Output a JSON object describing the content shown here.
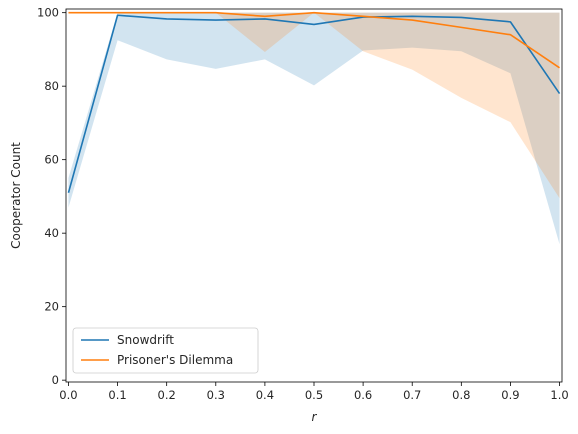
{
  "chart_data": {
    "type": "line",
    "title": "",
    "xlabel": "r",
    "ylabel": "Cooperator Count",
    "xlim": [
      -0.005,
      1.005
    ],
    "ylim": [
      -0.5,
      101
    ],
    "xticks": [
      0.0,
      0.1,
      0.2,
      0.3,
      0.4,
      0.5,
      0.6,
      0.7,
      0.8,
      0.9,
      1.0
    ],
    "xtick_labels": [
      "0.0",
      "0.1",
      "0.2",
      "0.3",
      "0.4",
      "0.5",
      "0.6",
      "0.7",
      "0.8",
      "0.9",
      "1.0"
    ],
    "yticks": [
      0,
      20,
      40,
      60,
      80,
      100
    ],
    "ytick_labels": [
      "0",
      "20",
      "40",
      "60",
      "80",
      "100"
    ],
    "grid": false,
    "legend": "lower-left",
    "x": [
      0.0,
      0.1,
      0.2,
      0.3,
      0.4,
      0.5,
      0.6,
      0.7,
      0.8,
      0.9,
      1.0
    ],
    "series": [
      {
        "name": "Snowdrift",
        "color": "#1f77b4",
        "values": [
          51,
          99.3,
          98.3,
          98,
          98.3,
          96.8,
          98.8,
          99,
          98.7,
          97.5,
          78
        ],
        "band_low": [
          47,
          92.5,
          87.3,
          84.7,
          87.3,
          80.2,
          89.7,
          90.5,
          89.5,
          83.5,
          37
        ],
        "band_high": [
          55,
          100,
          100,
          100,
          100,
          100,
          100,
          100,
          100,
          100,
          100
        ]
      },
      {
        "name": "Prisoner's Dilemma",
        "color": "#ff7f0e",
        "values": [
          100,
          100,
          100,
          100,
          99,
          100,
          99,
          98,
          96,
          94,
          85
        ],
        "band_low": [
          100,
          100,
          100,
          100,
          89.3,
          100,
          89.5,
          84.5,
          76.8,
          70.2,
          49.5
        ],
        "band_high": [
          100,
          100,
          100,
          100,
          100,
          100,
          100,
          100,
          100,
          100,
          100
        ]
      }
    ]
  }
}
